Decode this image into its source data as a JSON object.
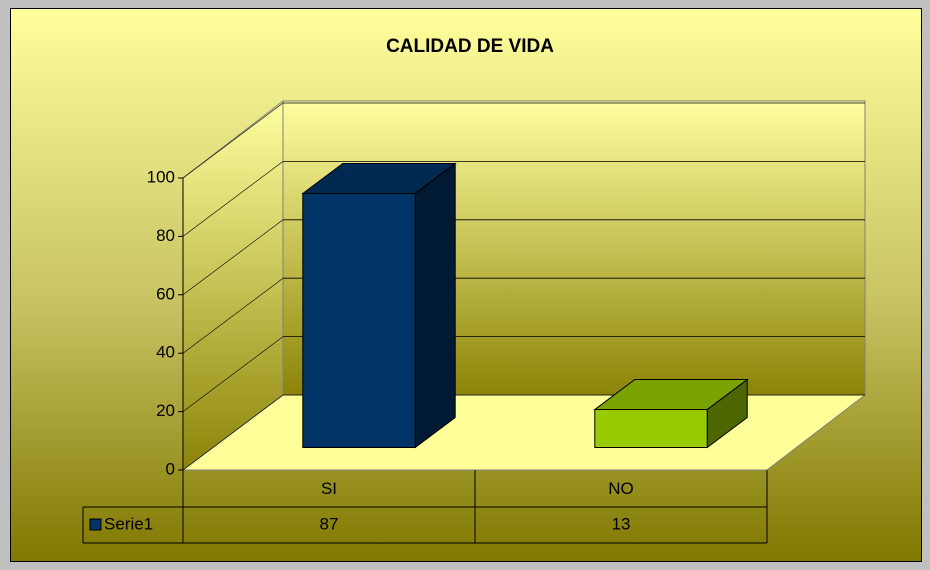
{
  "chart_data": {
    "type": "bar3d",
    "title": "CALIDAD DE VIDA",
    "categories": [
      "SI",
      "NO"
    ],
    "series": [
      {
        "name": "Serie1",
        "color": "#003366",
        "colors": [
          "#003366",
          "#99cc00"
        ],
        "values": [
          87,
          13
        ]
      }
    ],
    "ylim": [
      0,
      100
    ],
    "yticks": [
      0,
      20,
      40,
      60,
      80,
      100
    ],
    "grid": true,
    "data_table": true
  }
}
